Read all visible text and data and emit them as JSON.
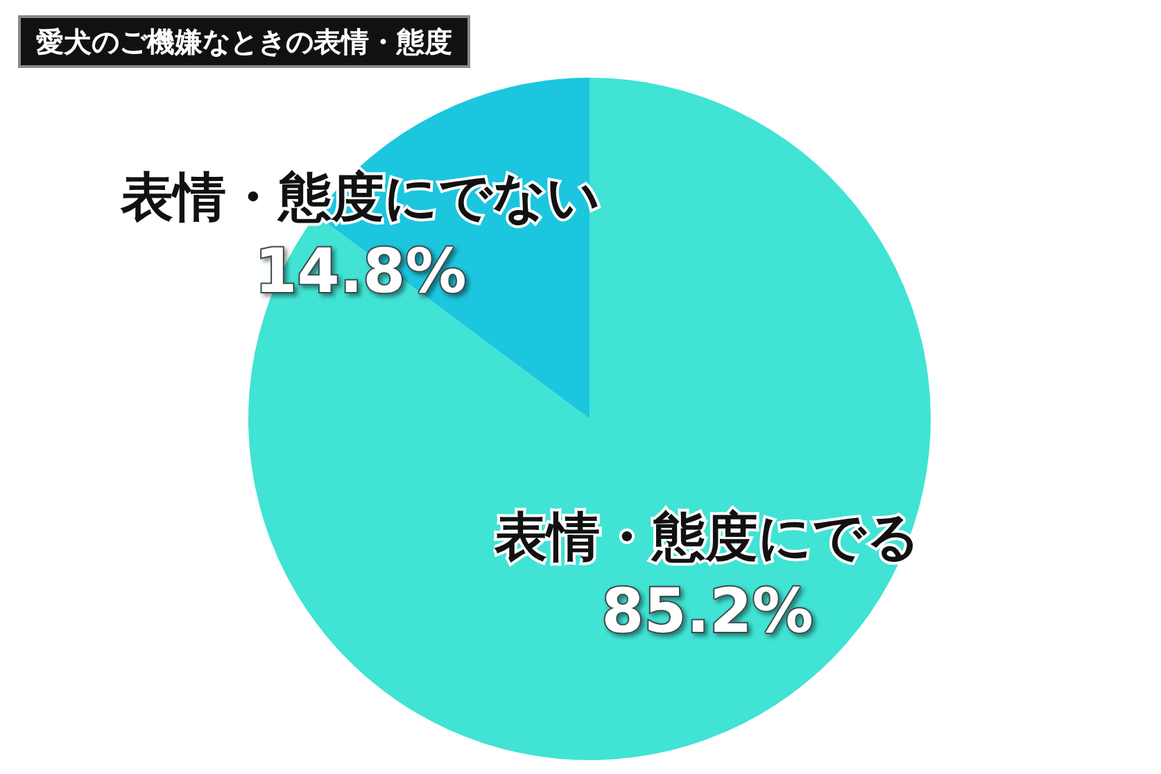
{
  "chart_data": {
    "type": "pie",
    "title": "愛犬のご機嫌なときの表情・態度",
    "categories": [
      "表情・態度にでない",
      "表情・態度にでる"
    ],
    "values": [
      14.8,
      85.2
    ],
    "value_labels": [
      "14.8%",
      "85.2%"
    ],
    "colors": [
      "#1cc6de",
      "#40e3d4"
    ],
    "legend": false
  }
}
